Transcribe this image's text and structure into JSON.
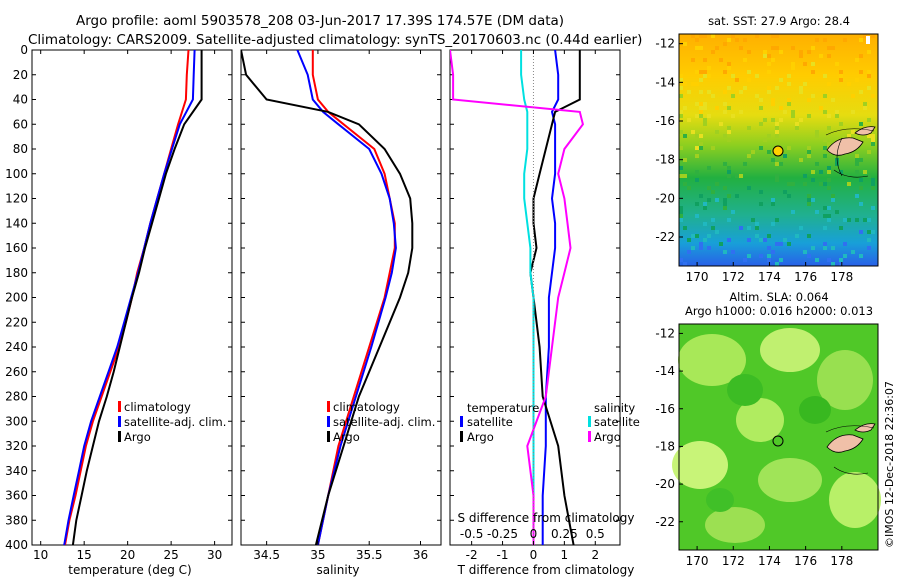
{
  "header": {
    "line1": "Argo profile: aoml 5903578_208 03-Jun-2017 17.39S 174.57E (DM data)",
    "line2": "Climatology: CARS2009. Satellite-adjusted climatology: synTS_20170603.nc (0.44d earlier)"
  },
  "footer": {
    "credit": "©IMOS 12-Dec-2018 22:36:07"
  },
  "colors": {
    "climatology": "#ff0000",
    "satellite": "#0000ff",
    "argo": "#000000",
    "t_sat": "#00e0e0",
    "s_argo": "#ff00ff",
    "land": "#f0c0a8"
  },
  "chart_data": [
    {
      "type": "line",
      "id": "temperature",
      "xlabel": "temperature (deg C)",
      "ylabel": "",
      "xlim": [
        9,
        32
      ],
      "ylim": [
        400,
        0
      ],
      "xticks": [
        10,
        15,
        20,
        25,
        30
      ],
      "yticks": [
        0,
        20,
        40,
        60,
        80,
        100,
        120,
        140,
        160,
        180,
        200,
        220,
        240,
        260,
        280,
        300,
        320,
        340,
        360,
        380,
        400
      ],
      "legend": [
        "climatology",
        "satellite-adj. clim.",
        "Argo"
      ],
      "depth": [
        0,
        20,
        40,
        60,
        80,
        100,
        120,
        140,
        160,
        180,
        200,
        220,
        240,
        260,
        280,
        300,
        320,
        340,
        360,
        380,
        400
      ],
      "series": [
        {
          "name": "climatology",
          "values": [
            27.0,
            26.8,
            26.7,
            25.8,
            25.0,
            24.2,
            23.4,
            22.6,
            21.9,
            21.1,
            20.5,
            19.8,
            19.0,
            18.0,
            17.0,
            16.0,
            15.2,
            14.6,
            14.0,
            13.3,
            12.8
          ]
        },
        {
          "name": "satellite-adj. clim.",
          "values": [
            27.7,
            27.6,
            27.5,
            26.0,
            25.1,
            24.2,
            23.4,
            22.6,
            21.9,
            21.2,
            20.4,
            19.6,
            18.8,
            17.8,
            16.8,
            15.8,
            15.0,
            14.4,
            13.8,
            13.2,
            12.7
          ]
        },
        {
          "name": "Argo",
          "values": [
            28.5,
            28.5,
            28.5,
            26.5,
            25.4,
            24.4,
            23.6,
            22.8,
            22.0,
            21.3,
            20.5,
            19.8,
            19.1,
            18.4,
            17.6,
            16.7,
            16.0,
            15.3,
            14.7,
            14.1,
            13.7
          ]
        }
      ]
    },
    {
      "type": "line",
      "id": "salinity",
      "xlabel": "salinity",
      "xlim": [
        34.25,
        36.2
      ],
      "ylim": [
        400,
        0
      ],
      "xticks": [
        34.5,
        35,
        35.5,
        36
      ],
      "legend": [
        "climatology",
        "satellite-adj. clim.",
        "Argo"
      ],
      "depth": [
        0,
        20,
        40,
        50,
        60,
        80,
        100,
        120,
        140,
        160,
        180,
        200,
        240,
        280,
        320,
        360,
        400
      ],
      "series": [
        {
          "name": "climatology",
          "values": [
            34.95,
            34.95,
            35.0,
            35.1,
            35.25,
            35.55,
            35.65,
            35.7,
            35.75,
            35.75,
            35.7,
            35.65,
            35.5,
            35.35,
            35.2,
            35.1,
            35.0
          ]
        },
        {
          "name": "satellite-adj. clim.",
          "values": [
            34.8,
            34.9,
            34.95,
            35.05,
            35.2,
            35.5,
            35.62,
            35.7,
            35.74,
            35.76,
            35.72,
            35.66,
            35.52,
            35.37,
            35.22,
            35.1,
            35.0
          ]
        },
        {
          "name": "Argo",
          "values": [
            34.25,
            34.3,
            34.5,
            35.1,
            35.4,
            35.65,
            35.8,
            35.9,
            35.92,
            35.92,
            35.88,
            35.8,
            35.6,
            35.4,
            35.25,
            35.1,
            34.98
          ]
        }
      ]
    },
    {
      "type": "line",
      "id": "differences",
      "xlabel": "T difference from climatology",
      "xlabel_top": "S difference from climatology",
      "xlim": [
        -2.7,
        2.8
      ],
      "ylim": [
        400,
        0
      ],
      "xticks": [
        -2,
        -1,
        0,
        1,
        2
      ],
      "top_ticks_labels": [
        "-0.5",
        "-0.25",
        "0",
        "0.25",
        "0.5"
      ],
      "top_ticks_pos": [
        -2,
        -1,
        0,
        1,
        2
      ],
      "legend_temperature": {
        "title": "temperature",
        "items": [
          "satellite",
          "Argo"
        ]
      },
      "legend_salinity": {
        "title": "salinity",
        "items": [
          "satellite",
          "Argo"
        ]
      },
      "depth": [
        0,
        20,
        40,
        50,
        60,
        80,
        100,
        120,
        140,
        160,
        180,
        200,
        240,
        280,
        320,
        360,
        400
      ],
      "series": [
        {
          "name": "T satellite",
          "values": [
            0.7,
            0.8,
            0.8,
            0.6,
            0.7,
            0.7,
            0.7,
            0.6,
            0.7,
            0.7,
            0.6,
            0.5,
            0.5,
            0.4,
            0.4,
            0.3,
            0.3
          ]
        },
        {
          "name": "T Argo",
          "values": [
            1.5,
            1.5,
            1.5,
            0.7,
            0.6,
            0.4,
            0.2,
            0.0,
            0.0,
            0.1,
            -0.1,
            0.0,
            0.2,
            0.3,
            0.8,
            1.0,
            1.3
          ]
        },
        {
          "name": "S satellite",
          "values": [
            -0.4,
            -0.4,
            -0.3,
            -0.2,
            -0.2,
            -0.2,
            -0.3,
            -0.3,
            -0.2,
            -0.1,
            -0.1,
            0.0,
            0.0,
            0.0,
            0.0,
            0.0,
            0.0
          ]
        },
        {
          "name": "S Argo",
          "values": [
            -2.7,
            -2.6,
            -2.6,
            1.5,
            1.6,
            1.0,
            0.8,
            1.0,
            1.1,
            1.2,
            1.0,
            0.8,
            0.6,
            0.4,
            -0.2,
            0.0,
            0.0
          ]
        }
      ]
    }
  ],
  "maps": [
    {
      "id": "sst",
      "title": "sat. SST: 27.9 Argo: 28.4",
      "xticks": [
        "170",
        "172",
        "174",
        "176",
        "178"
      ],
      "yticks": [
        "-12",
        "-14",
        "-16",
        "-18",
        "-20",
        "-22"
      ],
      "xlim": [
        169,
        180
      ],
      "ylim": [
        -23.5,
        -11.5
      ],
      "profile_lon": 174.57,
      "profile_lat": -17.39
    },
    {
      "id": "sla",
      "title1": "Altim. SLA: 0.064",
      "title2": "Argo h1000: 0.016 h2000: 0.013",
      "xticks": [
        "170",
        "172",
        "174",
        "176",
        "178"
      ],
      "yticks": [
        "-12",
        "-14",
        "-16",
        "-18",
        "-20",
        "-22"
      ],
      "xlim": [
        169,
        180
      ],
      "ylim": [
        -23.5,
        -11.5
      ],
      "profile_lon": 174.57,
      "profile_lat": -17.39
    }
  ]
}
